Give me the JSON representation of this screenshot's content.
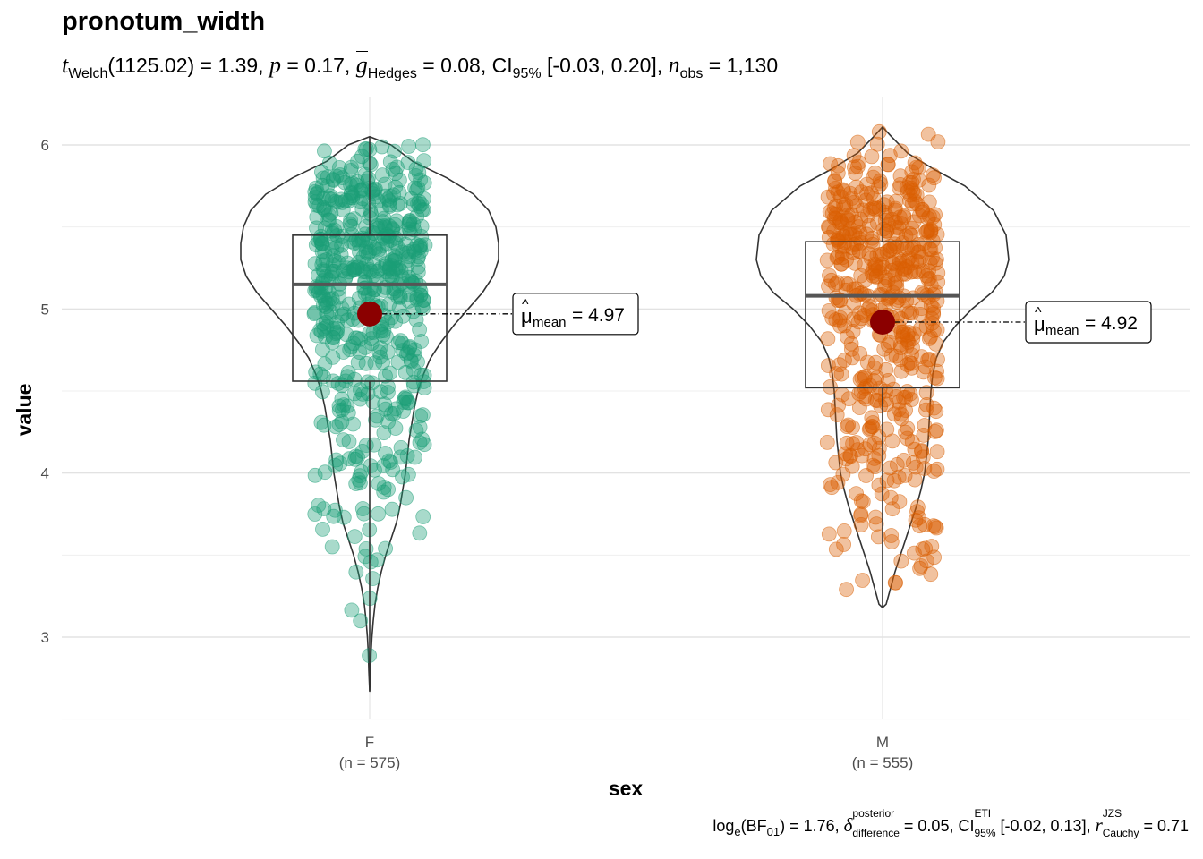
{
  "title": "pronotum_width",
  "subtitle": {
    "t_sym": "t",
    "t_sub": "Welch",
    "df": "(1125.02)",
    "t_val": " = 1.39, ",
    "p_sym": "p",
    "p_val": " = 0.17, ",
    "g_sym": "g",
    "g_sub": "Hedges",
    "g_val": " = 0.08, CI",
    "ci_sub": "95%",
    "ci_val": " [-0.03, 0.20], ",
    "n_sym": "n",
    "n_sub": "obs",
    "n_val": " = 1,130"
  },
  "caption": {
    "log": "log",
    "log_sub": "e",
    "bf": "(BF",
    "bf_sub": "01",
    "bf_val": ") = 1.76, ",
    "delta_sym": "δ",
    "delta_sup": "posterior",
    "delta_sub": "difference",
    "delta_val": " = 0.05, CI",
    "ci_sup": "ETI",
    "ci_sub": "95%",
    "ci_val": " [-0.02, 0.13], ",
    "r_sym": "r",
    "r_sup": "JZS",
    "r_sub": "Cauchy",
    "r_val": " = 0.71"
  },
  "chart_data": {
    "type": "violin-box-scatter",
    "title": "pronotum_width",
    "xlabel": "sex",
    "ylabel": "value",
    "ylim": [
      2.5,
      6.25
    ],
    "yticks": [
      3,
      4,
      5,
      6
    ],
    "grid": true,
    "mean_marker_color": "#8b0000",
    "groups": [
      {
        "name": "F",
        "n_label": "(n = 575)",
        "color": "#1b9e77",
        "box": {
          "q1": 4.56,
          "median": 5.15,
          "q3": 5.45,
          "whisker_low": 2.67,
          "whisker_high": 6.05
        },
        "mean": 4.97,
        "mean_label": "= 4.97",
        "mean_sym": "μ",
        "mean_sub": "mean",
        "violin_range": [
          2.67,
          6.05
        ]
      },
      {
        "name": "M",
        "n_label": "(n = 555)",
        "color": "#d95f02",
        "box": {
          "q1": 4.52,
          "median": 5.08,
          "q3": 5.41,
          "whisker_low": 3.18,
          "whisker_high": 6.11
        },
        "mean": 4.92,
        "mean_label": "= 4.92",
        "mean_sym": "μ",
        "mean_sub": "mean",
        "violin_range": [
          3.18,
          6.11
        ]
      }
    ]
  }
}
